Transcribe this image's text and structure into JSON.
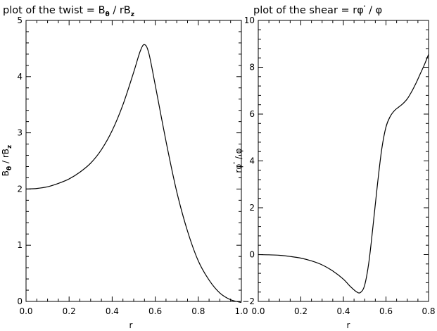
{
  "chart_data": [
    {
      "type": "line",
      "title_parts": [
        "plot of the twist = B",
        "θ",
        "  / rB",
        "z"
      ],
      "xlabel": "r",
      "ylabel_parts": [
        "B",
        "θ",
        "  / rB",
        "z"
      ],
      "xlim": [
        0.0,
        1.0
      ],
      "ylim": [
        0,
        5
      ],
      "xticks": [
        "0.0",
        "0.2",
        "0.4",
        "0.6",
        "0.8",
        "1.0"
      ],
      "yticks": [
        "0",
        "1",
        "2",
        "3",
        "4",
        "5"
      ],
      "grid": false,
      "series": [
        {
          "x": [
            0.0,
            0.05,
            0.1,
            0.15,
            0.2,
            0.25,
            0.3,
            0.35,
            0.4,
            0.45,
            0.5,
            0.53,
            0.55,
            0.57,
            0.6,
            0.65,
            0.7,
            0.75,
            0.8,
            0.85,
            0.9,
            0.95,
            1.0
          ],
          "y": [
            2.0,
            2.01,
            2.04,
            2.1,
            2.18,
            2.3,
            2.46,
            2.7,
            3.04,
            3.5,
            4.08,
            4.45,
            4.57,
            4.42,
            3.85,
            2.85,
            1.95,
            1.25,
            0.72,
            0.38,
            0.15,
            0.03,
            -0.02
          ]
        }
      ]
    },
    {
      "type": "line",
      "title_parts": [
        "plot of the shear =  rφ",
        "'",
        "  / φ"
      ],
      "xlabel": "r",
      "ylabel_parts": [
        "rφ",
        "'",
        "  / φ"
      ],
      "xlim": [
        0.0,
        0.8
      ],
      "ylim": [
        -2,
        10
      ],
      "xticks": [
        "0.0",
        "0.2",
        "0.4",
        "0.6",
        "0.8"
      ],
      "yticks": [
        "−2",
        "0",
        "2",
        "4",
        "6",
        "8",
        "10"
      ],
      "grid": false,
      "series": [
        {
          "x": [
            0.0,
            0.05,
            0.1,
            0.15,
            0.2,
            0.25,
            0.3,
            0.35,
            0.4,
            0.43,
            0.46,
            0.48,
            0.5,
            0.52,
            0.54,
            0.56,
            0.58,
            0.6,
            0.62,
            0.64,
            0.66,
            0.68,
            0.7,
            0.72,
            0.74,
            0.76,
            0.78,
            0.8
          ],
          "y": [
            0.0,
            -0.01,
            -0.03,
            -0.08,
            -0.15,
            -0.27,
            -0.44,
            -0.7,
            -1.05,
            -1.34,
            -1.58,
            -1.62,
            -1.3,
            -0.3,
            1.3,
            3.0,
            4.5,
            5.45,
            5.9,
            6.15,
            6.3,
            6.45,
            6.65,
            6.95,
            7.3,
            7.7,
            8.1,
            8.55
          ]
        }
      ]
    }
  ]
}
